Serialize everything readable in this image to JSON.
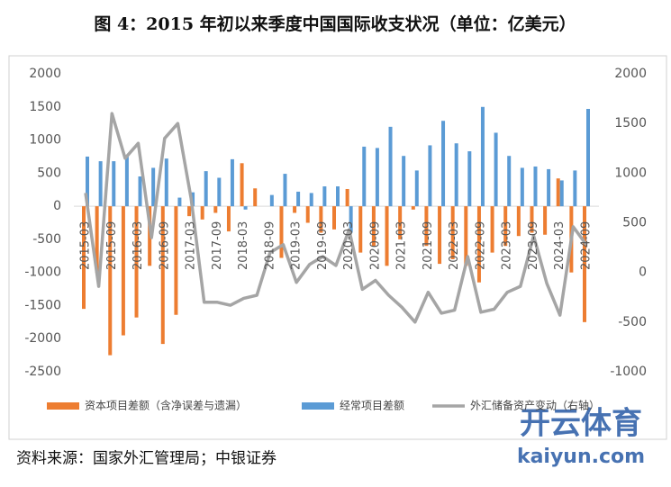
{
  "title": "图 4：2015 年初以来季度中国国际收支状况（单位：亿美元）",
  "source": "资料来源：国家外汇管理局；中银证券",
  "watermark": {
    "brand": "开云体育",
    "url": "kaiyun.com"
  },
  "chart_data": {
    "type": "bar",
    "categories": [
      "2015-03",
      null,
      "2015-09",
      null,
      "2016-03",
      null,
      "2016-09",
      null,
      "2017-03",
      null,
      "2017-09",
      null,
      "2018-03",
      null,
      "2018-09",
      null,
      "2019-03",
      null,
      "2019-09",
      null,
      "2020-03",
      null,
      "2020-09",
      null,
      "2021-03",
      null,
      "2021-09",
      null,
      "2022-03",
      null,
      "2022-09",
      null,
      "2023-03",
      null,
      "2023-09",
      null,
      "2024-03",
      null,
      "2024-09"
    ],
    "series": [
      {
        "name": "资本项目差额（含净误差与遗漏）",
        "color": "#ed7d31",
        "values": [
          -1550,
          -1000,
          -2250,
          -1950,
          -1680,
          -900,
          -2080,
          -1640,
          -150,
          -200,
          -100,
          -380,
          650,
          270,
          0,
          -780,
          -100,
          -250,
          -400,
          -350,
          260,
          -700,
          -600,
          -900,
          -500,
          -50,
          -600,
          -870,
          -800,
          -900,
          -1150,
          -700,
          -600,
          -450,
          -400,
          -430,
          420,
          -1000,
          -1750
        ]
      },
      {
        "name": "经常项目差额",
        "color": "#5b9bd5",
        "values": [
          750,
          680,
          680,
          750,
          450,
          580,
          720,
          130,
          210,
          530,
          430,
          710,
          -50,
          0,
          170,
          490,
          220,
          200,
          300,
          300,
          -400,
          900,
          880,
          1200,
          760,
          540,
          920,
          1290,
          950,
          830,
          1500,
          1110,
          760,
          580,
          600,
          560,
          390,
          540,
          1470
        ]
      },
      {
        "name": "外汇储备资产变动（右轴）",
        "color": "#a5a5a5",
        "type": "line",
        "axis": "y2",
        "values": [
          800,
          -140,
          1600,
          1150,
          1300,
          350,
          1350,
          1500,
          750,
          -300,
          -300,
          -330,
          -260,
          -230,
          200,
          280,
          -100,
          80,
          160,
          70,
          430,
          -170,
          -80,
          -230,
          -350,
          -500,
          -200,
          -410,
          -380,
          160,
          -400,
          -370,
          -200,
          -140,
          370,
          -110,
          -430,
          460,
          280
        ]
      }
    ],
    "ylim": [
      -2500,
      2000
    ],
    "yticks": [
      -2500,
      -2000,
      -1500,
      -1000,
      -500,
      0,
      500,
      1000,
      1500,
      2000
    ],
    "y2lim": [
      -1000,
      2000
    ],
    "y2ticks": [
      -1000,
      -500,
      0,
      500,
      1000,
      1500,
      2000
    ]
  }
}
